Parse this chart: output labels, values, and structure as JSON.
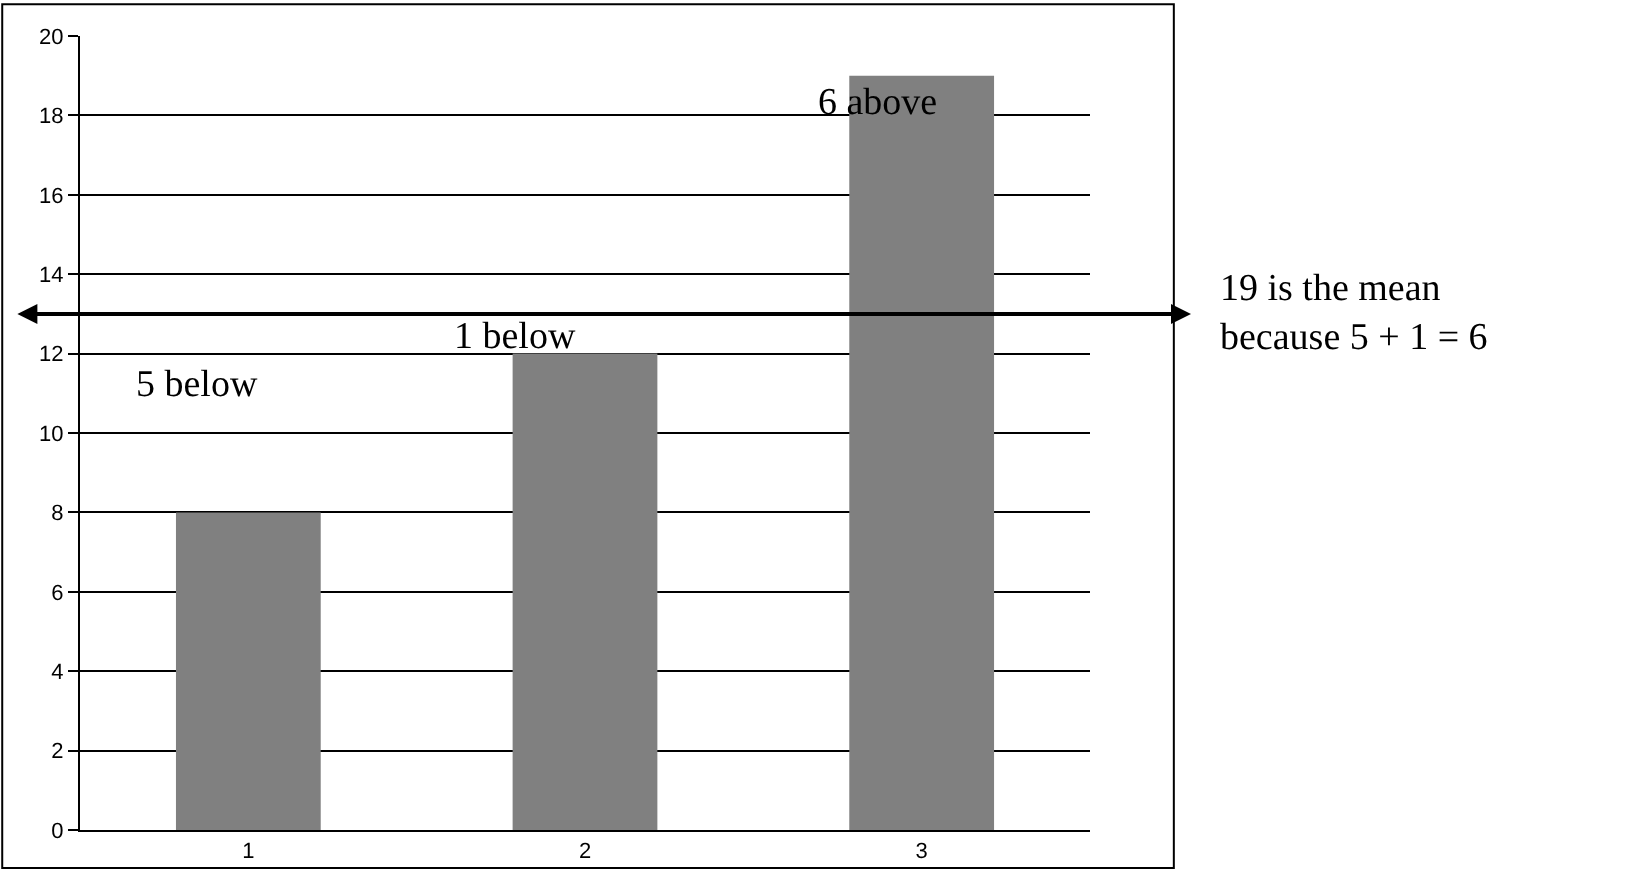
{
  "chart_data": {
    "type": "bar",
    "categories": [
      "1",
      "2",
      "3"
    ],
    "values": [
      8,
      12,
      19
    ],
    "color": "#808080",
    "ylim": [
      0,
      20
    ],
    "yticks": [
      0,
      2,
      4,
      6,
      8,
      10,
      12,
      14,
      16,
      18,
      20
    ],
    "grid": "y",
    "ref_lines": [
      {
        "axis": "y",
        "value": 13,
        "color": "#000000"
      }
    ],
    "annotations": [
      "5 below",
      "1 below",
      "6 above",
      "19 is the mean\nbecause 5 + 1 = 6"
    ]
  }
}
